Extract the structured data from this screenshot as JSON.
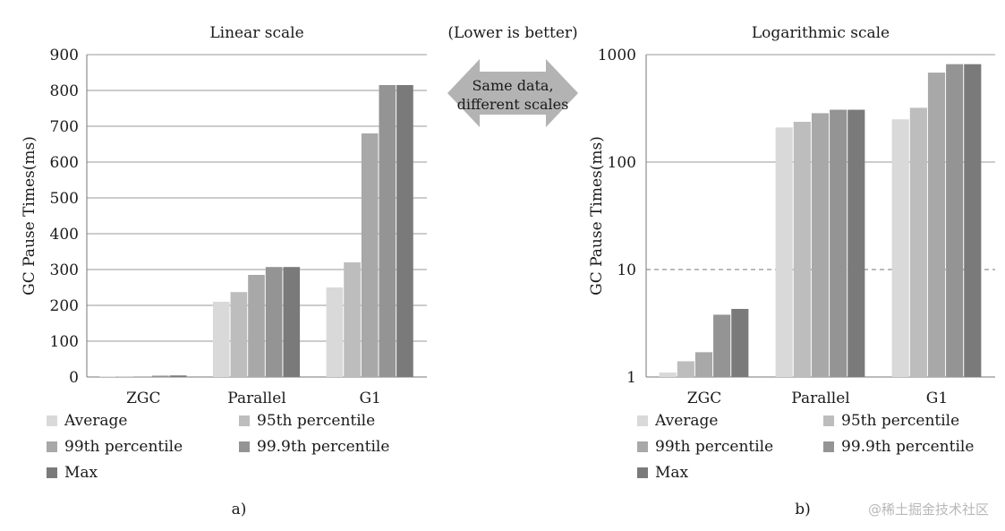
{
  "chart_data": [
    {
      "type": "bar",
      "title": "Linear scale",
      "ylabel": "GC Pause Times(ms)",
      "xlabel": "",
      "panel_label": "a)",
      "scale": "linear",
      "ylim": [
        0,
        900
      ],
      "yticks": [
        "0",
        "100",
        "200",
        "300",
        "400",
        "500",
        "600",
        "700",
        "800",
        "900"
      ],
      "grid": true,
      "legend_position": "bottom",
      "categories": [
        "ZGC",
        "Parallel",
        "G1"
      ],
      "series": [
        {
          "name": "Average",
          "values": [
            1.1,
            210,
            250
          ],
          "color": "#d9d9d9"
        },
        {
          "name": "95th percentile",
          "values": [
            1.4,
            237,
            320
          ],
          "color": "#bdbdbd"
        },
        {
          "name": "99th percentile",
          "values": [
            1.7,
            285,
            680
          ],
          "color": "#a8a8a8"
        },
        {
          "name": "99.9th percentile",
          "values": [
            3.8,
            307,
            815
          ],
          "color": "#949494"
        },
        {
          "name": "Max",
          "values": [
            4.3,
            307,
            815
          ],
          "color": "#7a7a7a"
        }
      ]
    },
    {
      "type": "bar",
      "title": "Logarithmic scale",
      "ylabel": "GC Pause Times(ms)",
      "xlabel": "",
      "panel_label": "b)",
      "scale": "log",
      "ylim": [
        1,
        1000
      ],
      "yticks": [
        "1",
        "10",
        "100",
        "1000"
      ],
      "grid": true,
      "legend_position": "bottom",
      "categories": [
        "ZGC",
        "Parallel",
        "G1"
      ],
      "series": [
        {
          "name": "Average",
          "values": [
            1.1,
            210,
            250
          ],
          "color": "#d9d9d9"
        },
        {
          "name": "95th percentile",
          "values": [
            1.4,
            237,
            320
          ],
          "color": "#bdbdbd"
        },
        {
          "name": "99th percentile",
          "values": [
            1.7,
            285,
            680
          ],
          "color": "#a8a8a8"
        },
        {
          "name": "99.9th percentile",
          "values": [
            3.8,
            307,
            815
          ],
          "color": "#949494"
        },
        {
          "name": "Max",
          "values": [
            4.3,
            307,
            815
          ],
          "color": "#7a7a7a"
        }
      ]
    }
  ],
  "annotation": {
    "top": "(Lower is better)",
    "arrow_line1": "Same data,",
    "arrow_line2": "different scales",
    "arrow_color": "#b3b3b3"
  },
  "watermark": "@稀土掘金技术社区"
}
